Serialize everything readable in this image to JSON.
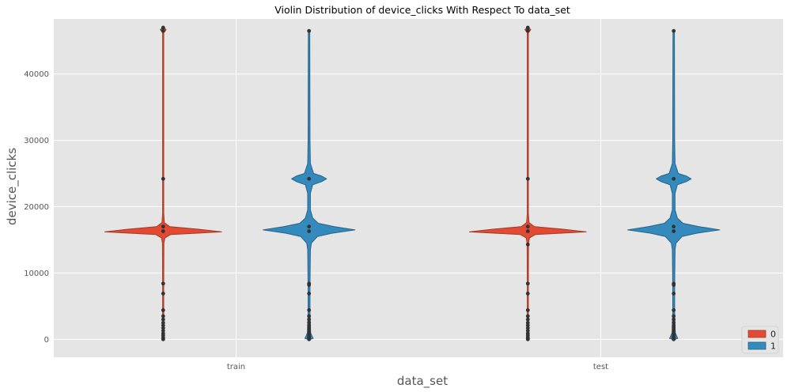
{
  "chart_data": {
    "type": "violin",
    "title": "Violin Distribution of device_clicks With Respect To data_set",
    "xlabel": "data_set",
    "ylabel": "device_clicks",
    "categories": [
      "train",
      "test"
    ],
    "ylim": [
      -2700,
      48300
    ],
    "yticks": [
      0,
      10000,
      20000,
      30000,
      40000
    ],
    "grid": true,
    "legend": {
      "placement": "bottom-right",
      "entries": [
        "0",
        "1"
      ]
    },
    "series": [
      {
        "name": "0",
        "color": "#E24A33",
        "edge": "#a33a27",
        "half_width_scale": 0.8,
        "shape": [
          [
            0,
            0.009
          ],
          [
            8000,
            0.009
          ],
          [
            14500,
            0.012
          ],
          [
            15300,
            0.03
          ],
          [
            15800,
            0.13
          ],
          [
            16200,
            1.0
          ],
          [
            16600,
            0.6
          ],
          [
            17000,
            0.11
          ],
          [
            17600,
            0.02
          ],
          [
            19000,
            0.01
          ],
          [
            46200,
            0.01
          ],
          [
            46700,
            0.05
          ],
          [
            47000,
            0.01
          ]
        ],
        "points": {
          "train": [
            0,
            150,
            300,
            600,
            900,
            1300,
            1700,
            2100,
            2500,
            3000,
            3500,
            4400,
            6900,
            8400,
            16300,
            17000,
            24200,
            46500,
            47000
          ],
          "test": [
            0,
            150,
            300,
            600,
            900,
            1300,
            1700,
            2100,
            2500,
            3000,
            3500,
            4400,
            6900,
            8400,
            14300,
            16300,
            17000,
            24200,
            46500,
            47000
          ]
        }
      },
      {
        "name": "1",
        "color": "#348ABD",
        "edge": "#25638a",
        "half_width_scale": 0.63,
        "shape": [
          [
            0,
            0.03
          ],
          [
            150,
            0.09
          ],
          [
            400,
            0.07
          ],
          [
            1000,
            0.035
          ],
          [
            4000,
            0.02
          ],
          [
            8000,
            0.02
          ],
          [
            13500,
            0.03
          ],
          [
            14500,
            0.05
          ],
          [
            15500,
            0.18
          ],
          [
            16000,
            0.5
          ],
          [
            16500,
            1.0
          ],
          [
            17000,
            0.55
          ],
          [
            17500,
            0.2
          ],
          [
            18300,
            0.08
          ],
          [
            19500,
            0.03
          ],
          [
            22000,
            0.03
          ],
          [
            23300,
            0.08
          ],
          [
            23800,
            0.28
          ],
          [
            24200,
            0.38
          ],
          [
            24600,
            0.28
          ],
          [
            25000,
            0.1
          ],
          [
            26500,
            0.03
          ],
          [
            30000,
            0.02
          ],
          [
            46500,
            0.015
          ]
        ],
        "points": {
          "train": [
            0,
            100,
            200,
            350,
            500,
            700,
            900,
            1200,
            1500,
            1800,
            2100,
            2500,
            3000,
            3500,
            4400,
            6900,
            8200,
            8400,
            16300,
            17000,
            24200,
            46500
          ],
          "test": [
            0,
            100,
            200,
            350,
            500,
            700,
            900,
            1200,
            1500,
            1800,
            2100,
            2500,
            3000,
            3500,
            4400,
            6900,
            8200,
            8400,
            16300,
            17000,
            24200,
            46500
          ]
        }
      }
    ]
  }
}
